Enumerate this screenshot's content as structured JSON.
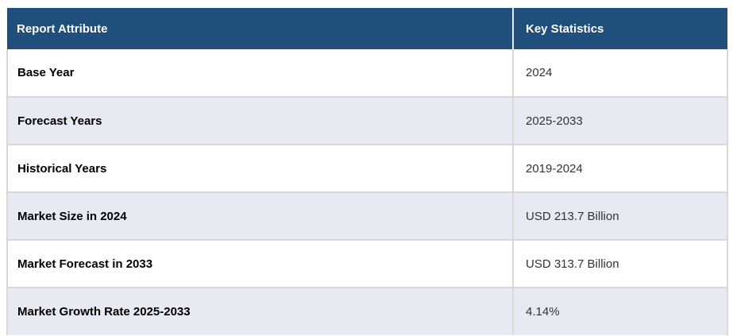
{
  "table": {
    "columns": [
      {
        "label": "Report Attribute"
      },
      {
        "label": "Key Statistics"
      }
    ],
    "rows": [
      {
        "attribute": "Base Year",
        "value": "2024"
      },
      {
        "attribute": "Forecast Years",
        "value": "2025-2033"
      },
      {
        "attribute": "Historical Years",
        "value": "2019-2024"
      },
      {
        "attribute": "Market Size in 2024",
        "value": "USD 213.7 Billion"
      },
      {
        "attribute": "Market Forecast in 2033",
        "value": "USD 313.7 Billion"
      },
      {
        "attribute": "Market Growth Rate 2025-2033",
        "value": "4.14%"
      }
    ],
    "colors": {
      "header_bg": "#1F4F7A",
      "header_text": "#FFFFFF",
      "stripe_bg": "#E7E9F3",
      "row_bg": "#FFFFFF",
      "border": "#D9D9D9",
      "header_divider": "#E9EBF2",
      "label_text": "#000000",
      "value_text": "#333333"
    }
  }
}
